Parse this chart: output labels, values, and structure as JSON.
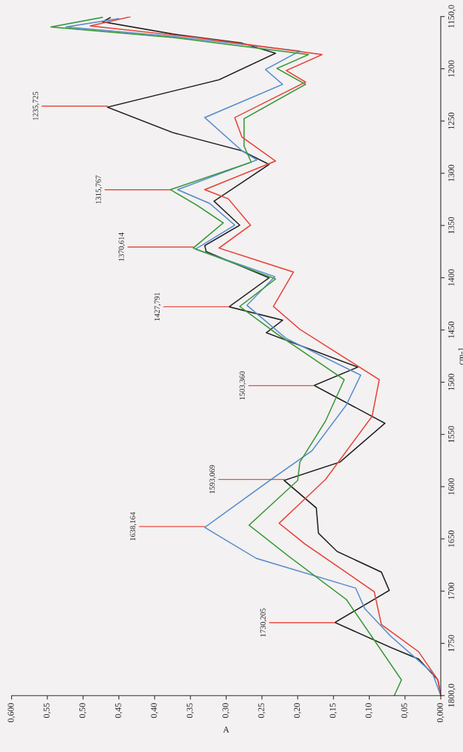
{
  "chart_data": {
    "type": "line",
    "xlabel": "A",
    "ylabel": "cm-1",
    "xlim": [
      0.6,
      0
    ],
    "xticks": [
      {
        "value": 0,
        "label": "0,000"
      },
      {
        "value": 0.05,
        "label": "0,05"
      },
      {
        "value": 0.1,
        "label": "0,10"
      },
      {
        "value": 0.15,
        "label": "0,15"
      },
      {
        "value": 0.2,
        "label": "0,20"
      },
      {
        "value": 0.25,
        "label": "0,25"
      },
      {
        "value": 0.3,
        "label": "0,30"
      },
      {
        "value": 0.35,
        "label": "0,35"
      },
      {
        "value": 0.4,
        "label": "0,40"
      },
      {
        "value": 0.45,
        "label": "0,45"
      },
      {
        "value": 0.5,
        "label": "0,50"
      },
      {
        "value": 0.55,
        "label": "0,55"
      },
      {
        "value": 0.6,
        "label": "0,600"
      }
    ],
    "ylim": [
      1800,
      1150
    ],
    "yticks": [
      {
        "value": 1800,
        "label": "1800,0"
      },
      1750,
      1700,
      1650,
      1600,
      1550,
      1500,
      1450,
      1400,
      1350,
      1300,
      1250,
      1200,
      {
        "value": 1150,
        "label": "1150,0"
      }
    ],
    "grid": false,
    "marker": "none",
    "line_style": "solid",
    "series": [
      {
        "color": "#222222",
        "values": [
          1151,
          1155,
          1166.7,
          1175.4,
          1185.1,
          1210.5,
          1236.8,
          1261,
          1278.5,
          1291.6,
          1326.7,
          1349.7,
          1369.2,
          1374.9,
          1400.1,
          1427.8,
          1440.7,
          1452.7,
          1485.6,
          1503.1,
          1539.3,
          1576.5,
          1594,
          1620.4,
          1644.5,
          1662,
          1681.8,
          1699.3,
          1730,
          1753.9,
          1765,
          1785,
          1800
        ],
        "x": [
          0.462,
          0.473,
          0.375,
          0.278,
          0.231,
          0.31,
          0.466,
          0.375,
          0.278,
          0.24,
          0.317,
          0.281,
          0.33,
          0.328,
          0.24,
          0.296,
          0.221,
          0.244,
          0.116,
          0.177,
          0.078,
          0.141,
          0.219,
          0.174,
          0.171,
          0.145,
          0.083,
          0.072,
          0.148,
          0.07,
          0.031,
          0.004,
          0
        ]
      },
      {
        "color": "#5b8fd0",
        "values": [
          1152,
          1160,
          1168.9,
          1183,
          1200.7,
          1214.9,
          1246.7,
          1278.5,
          1287.2,
          1315.7,
          1328.9,
          1349.7,
          1372.7,
          1399,
          1426.4,
          1458.2,
          1493.3,
          1521.8,
          1565.6,
          1594,
          1639,
          1668.6,
          1697.1,
          1717,
          1743.1,
          1778,
          1800
        ],
        "x": [
          0.45,
          0.524,
          0.375,
          0.197,
          0.245,
          0.221,
          0.33,
          0.278,
          0.257,
          0.368,
          0.323,
          0.288,
          0.343,
          0.232,
          0.271,
          0.216,
          0.112,
          0.132,
          0.18,
          0.239,
          0.33,
          0.258,
          0.119,
          0.106,
          0.07,
          0.012,
          0
        ]
      },
      {
        "color": "#3a9a3a",
        "values": [
          1150.8,
          1160,
          1170,
          1186.4,
          1199.6,
          1214.9,
          1247.8,
          1274,
          1289.4,
          1315.7,
          1331,
          1347.5,
          1371.6,
          1401.2,
          1427.5,
          1453.8,
          1497.6,
          1537,
          1576.5,
          1594,
          1636.8,
          1666.4,
          1708,
          1762.9,
          1785,
          1800
        ],
        "x": [
          0.473,
          0.545,
          0.375,
          0.185,
          0.229,
          0.189,
          0.275,
          0.275,
          0.265,
          0.378,
          0.34,
          0.304,
          0.346,
          0.231,
          0.281,
          0.229,
          0.135,
          0.161,
          0.197,
          0.2,
          0.268,
          0.213,
          0.132,
          0.077,
          0.055,
          0.065
        ]
      },
      {
        "color": "#e8453c",
        "values": [
          1150.2,
          1159,
          1170,
          1186.4,
          1201.7,
          1212.7,
          1246.7,
          1265.3,
          1288.3,
          1315.7,
          1324.5,
          1349.7,
          1371.6,
          1394.6,
          1427.5,
          1449.4,
          1497.6,
          1532.6,
          1593,
          1635,
          1654.8,
          1700.6,
          1732,
          1758,
          1785,
          1800
        ],
        "x": [
          0.434,
          0.49,
          0.343,
          0.166,
          0.216,
          0.189,
          0.288,
          0.278,
          0.231,
          0.33,
          0.297,
          0.266,
          0.31,
          0.206,
          0.234,
          0.197,
          0.086,
          0.096,
          0.161,
          0.226,
          0.19,
          0.093,
          0.083,
          0.031,
          0.004,
          0
        ]
      }
    ],
    "annotations": [
      {
        "text": "1235,725",
        "x": 0.466,
        "y": 1235.725
      },
      {
        "text": "1315,767",
        "x": 0.378,
        "y": 1315.767
      },
      {
        "text": "1370,614",
        "x": 0.346,
        "y": 1370.614
      },
      {
        "text": "1427,791",
        "x": 0.296,
        "y": 1427.791
      },
      {
        "text": "1503,360",
        "x": 0.177,
        "y": 1503.36
      },
      {
        "text": "1593,069",
        "x": 0.219,
        "y": 1593.069
      },
      {
        "text": "1638,164",
        "x": 0.33,
        "y": 1638.164
      },
      {
        "text": "1730,205",
        "x": 0.148,
        "y": 1730.205
      }
    ]
  }
}
